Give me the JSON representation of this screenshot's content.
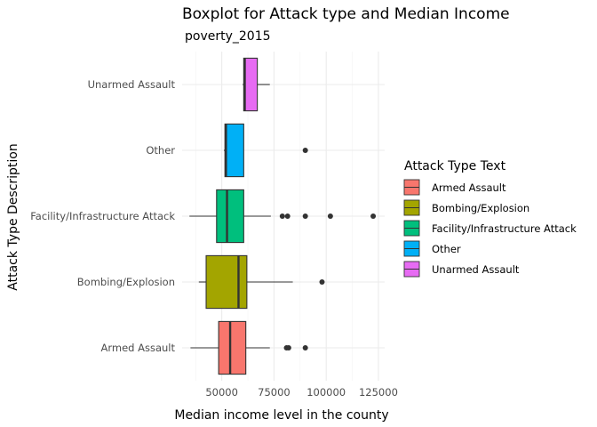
{
  "chart_data": {
    "type": "boxplot",
    "title": "Boxplot  for Attack type and Median Income",
    "subtitle": "poverty_2015",
    "xlabel": "Median income level in the county",
    "ylabel": "Attack Type Description",
    "xlim": [
      31000,
      128000
    ],
    "x_ticks": [
      50000,
      75000,
      100000,
      125000
    ],
    "x_tick_labels": [
      "50000",
      "75000",
      "100000",
      "125000"
    ],
    "legend_title": "Attack Type Text",
    "legend_position": "right",
    "categories": [
      "Armed Assault",
      "Bombing/Explosion",
      "Facility/Infrastructure Attack",
      "Other",
      "Unarmed Assault"
    ],
    "colors": [
      "#F8766D",
      "#A3A500",
      "#00BF7D",
      "#00B0F6",
      "#E76BF3"
    ],
    "boxes": [
      {
        "name": "Armed Assault",
        "whisker_low": 35000,
        "q1": 48500,
        "median": 54000,
        "q3": 61500,
        "whisker_high": 73000,
        "outliers": [
          81000,
          82000,
          90000
        ]
      },
      {
        "name": "Bombing/Explosion",
        "whisker_low": 39000,
        "q1": 42500,
        "median": 58000,
        "q3": 62000,
        "whisker_high": 84000,
        "outliers": [
          98000
        ]
      },
      {
        "name": "Facility/Infrastructure Attack",
        "whisker_low": 34500,
        "q1": 47500,
        "median": 52500,
        "q3": 60500,
        "whisker_high": 73500,
        "outliers": [
          79000,
          81500,
          90000,
          102000,
          122500
        ]
      },
      {
        "name": "Other",
        "whisker_low": 51000,
        "q1": 51500,
        "median": 52000,
        "q3": 60500,
        "whisker_high": 60500,
        "outliers": [
          90000
        ]
      },
      {
        "name": "Unarmed Assault",
        "whisker_low": 60000,
        "q1": 60500,
        "median": 61000,
        "q3": 67000,
        "whisker_high": 73000,
        "outliers": []
      }
    ]
  }
}
